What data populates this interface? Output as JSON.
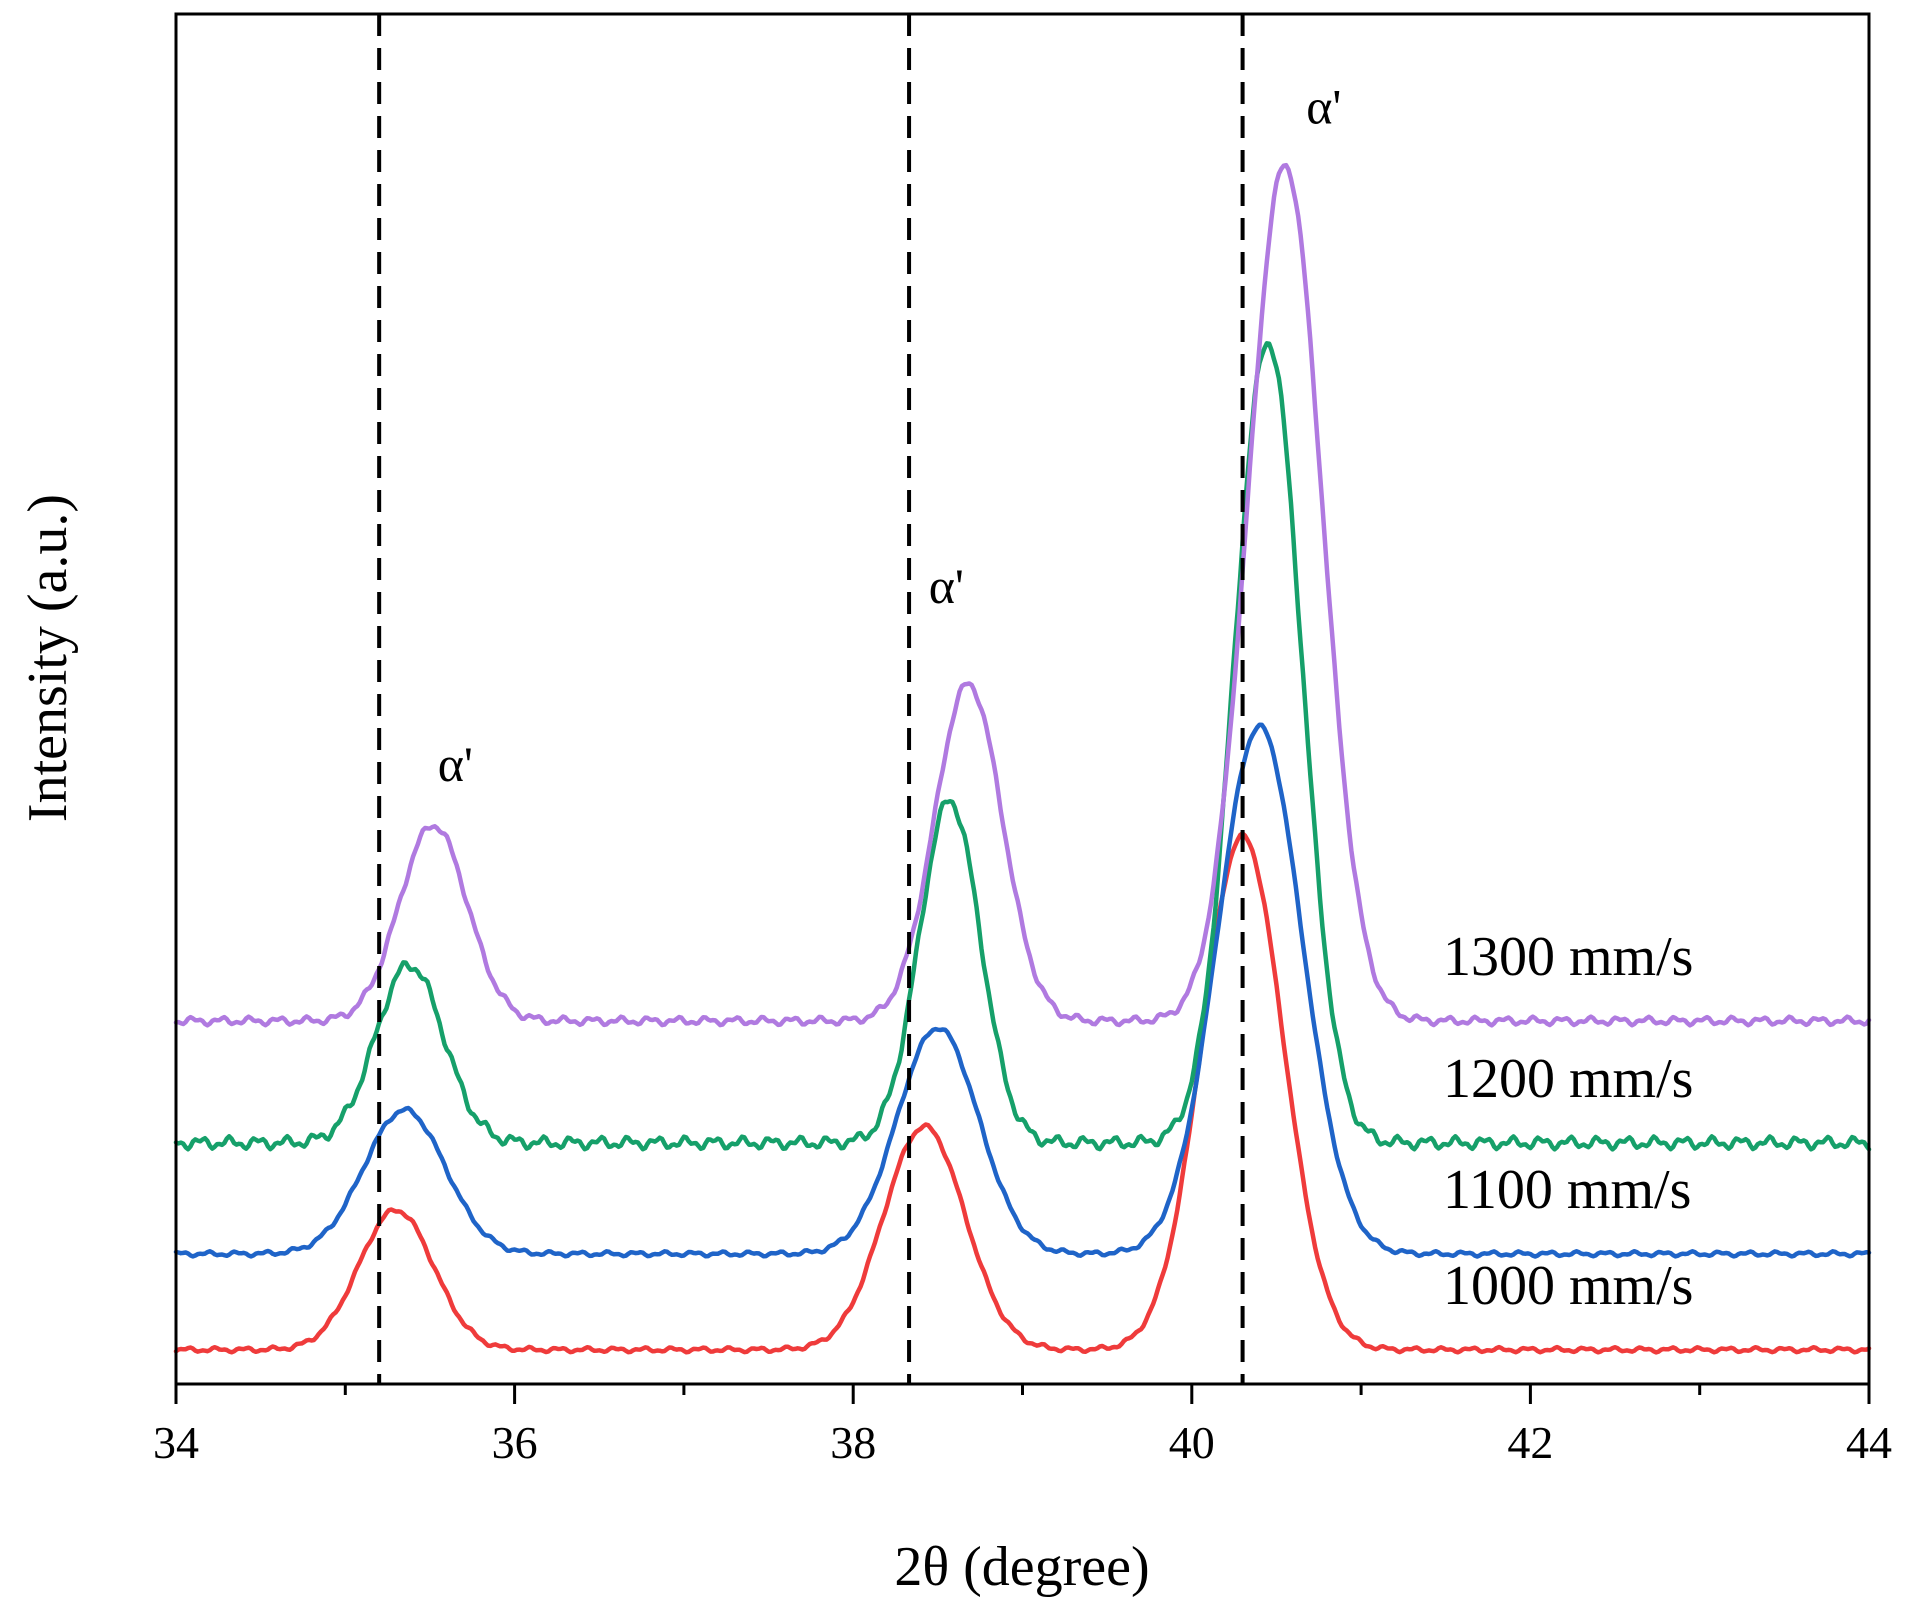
{
  "chart_data": {
    "type": "line",
    "title": "",
    "xlabel": "2θ (degree)",
    "ylabel": "Intensity (a.u.)",
    "xlim": [
      34,
      44
    ],
    "ylim": [
      0,
      100
    ],
    "x_ticks": [
      34,
      36,
      38,
      40,
      42,
      44
    ],
    "x_tick_labels": [
      "34",
      "36",
      "38",
      "40",
      "42",
      "44"
    ],
    "x_minor_ticks": [
      35,
      37,
      39,
      41,
      43
    ],
    "y_ticks_shown": false,
    "grid": false,
    "reference_lines_x": [
      35.2,
      38.33,
      40.3
    ],
    "annotations": [
      {
        "text": "α'",
        "x": 35.65,
        "y": 44
      },
      {
        "text": "α'",
        "x": 38.55,
        "y": 57
      },
      {
        "text": "α'",
        "x": 40.78,
        "y": 92
      }
    ],
    "series": [
      {
        "name": "1000 mm/s",
        "label": "1000 mm/s",
        "color": "#ef3b3b",
        "baseline": 2.5,
        "noise": 0.12,
        "peaks": [
          {
            "x": 35.3,
            "height": 10.2,
            "width": 0.22
          },
          {
            "x": 38.42,
            "height": 16.3,
            "width": 0.24
          },
          {
            "x": 40.3,
            "height": 37.5,
            "width": 0.24
          }
        ]
      },
      {
        "name": "1100 mm/s",
        "label": "1100 mm/s",
        "color": "#1f64c8",
        "baseline": 9.5,
        "noise": 0.12,
        "peaks": [
          {
            "x": 35.35,
            "height": 10.5,
            "width": 0.24
          },
          {
            "x": 38.5,
            "height": 16.5,
            "width": 0.24
          },
          {
            "x": 40.4,
            "height": 38.5,
            "width": 0.25
          }
        ]
      },
      {
        "name": "1200 mm/s",
        "label": "1200 mm/s",
        "color": "#16a06a",
        "baseline": 17.6,
        "noise": 0.3,
        "peaks": [
          {
            "x": 35.38,
            "height": 13.0,
            "width": 0.2
          },
          {
            "x": 38.57,
            "height": 25.0,
            "width": 0.18
          },
          {
            "x": 40.45,
            "height": 58.5,
            "width": 0.2
          }
        ]
      },
      {
        "name": "1300 mm/s",
        "label": "1300 mm/s",
        "color": "#b07ae0",
        "baseline": 26.5,
        "noise": 0.2,
        "peaks": [
          {
            "x": 35.52,
            "height": 14.3,
            "width": 0.2
          },
          {
            "x": 38.68,
            "height": 24.6,
            "width": 0.2
          },
          {
            "x": 40.55,
            "height": 62.5,
            "width": 0.22
          }
        ]
      }
    ]
  }
}
